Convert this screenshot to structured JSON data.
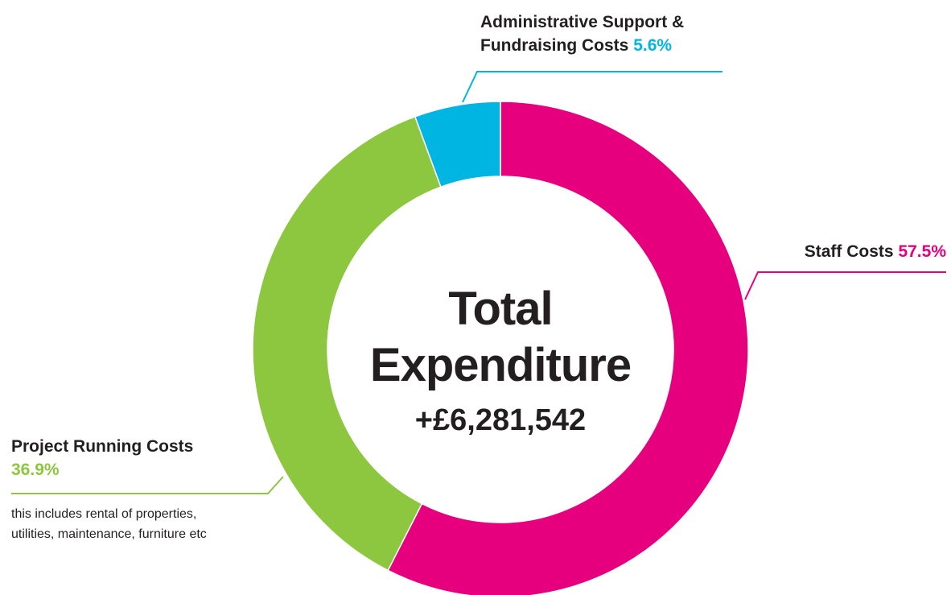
{
  "chart_data": {
    "type": "pie",
    "donut": true,
    "center_title_line1": "Total",
    "center_title_line2": "Expenditure",
    "center_value": "+£6,281,542",
    "slices": [
      {
        "label": "Staff Costs",
        "value": 57.5,
        "value_label": "57.5%",
        "color": "#e6007e"
      },
      {
        "label": "Project Running Costs",
        "value": 36.9,
        "value_label": "36.9%",
        "color": "#8dc63f",
        "note_line1": "this includes rental of properties,",
        "note_line2": "utilities, maintenance, furniture etc"
      },
      {
        "label_line1": "Administrative Support &",
        "label_line2": "Fundraising Costs",
        "value": 5.6,
        "value_label": "5.6%",
        "color": "#00b5e2"
      }
    ]
  }
}
